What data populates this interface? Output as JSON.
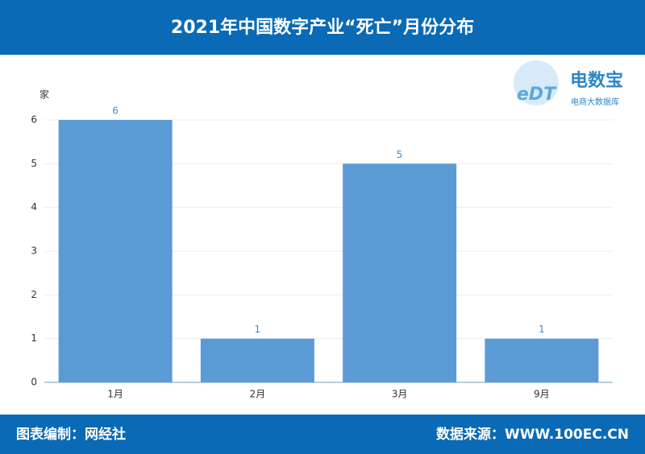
{
  "chart_data": {
    "type": "bar",
    "title": "2021年中国数字产业“死亡”月份分布",
    "y_axis_label": "家",
    "categories": [
      "1月",
      "2月",
      "3月",
      "9月"
    ],
    "values": [
      6,
      1,
      5,
      1
    ],
    "color": "#5b9bd5",
    "ylim": [
      0,
      6
    ],
    "yticks": [
      0,
      1,
      2,
      3,
      4,
      5,
      6
    ],
    "grid": true,
    "logo": {
      "mark": "eDT",
      "name": "电数宝",
      "tagline": "电商大数据库"
    },
    "footer": {
      "left": "图表编制：网经社",
      "right": "数据来源：WWW.100EC.CN"
    }
  }
}
